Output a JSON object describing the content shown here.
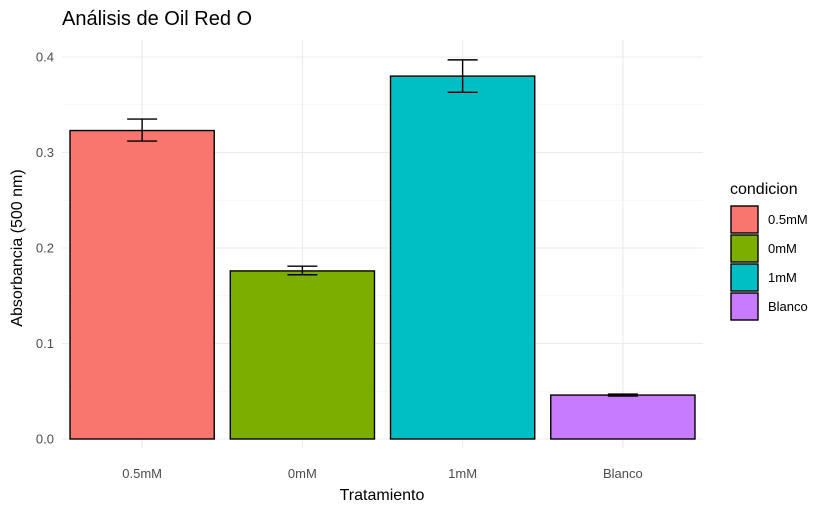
{
  "chart_data": {
    "type": "bar",
    "title": "Análisis de Oil Red O",
    "xlabel": "Tratamiento",
    "ylabel": "Absorbancia (500 nm)",
    "categories": [
      "0.5mM",
      "0mM",
      "1mM",
      "Blanco"
    ],
    "values": [
      0.323,
      0.176,
      0.38,
      0.046
    ],
    "error_low": [
      0.312,
      0.172,
      0.363,
      0.045
    ],
    "error_high": [
      0.335,
      0.181,
      0.397,
      0.047
    ],
    "colors": [
      "#F8766D",
      "#7CAE00",
      "#00BFC4",
      "#C77CFF"
    ],
    "ylim": [
      0,
      0.4
    ],
    "yticks": [
      "0.0",
      "0.1",
      "0.2",
      "0.3",
      "0.4"
    ],
    "ytick_values": [
      0,
      0.1,
      0.2,
      0.3,
      0.4
    ],
    "grid": true,
    "legend": {
      "title": "condicion",
      "placement": "right",
      "labels": [
        "0.5mM",
        "0mM",
        "1mM",
        "Blanco"
      ]
    }
  }
}
